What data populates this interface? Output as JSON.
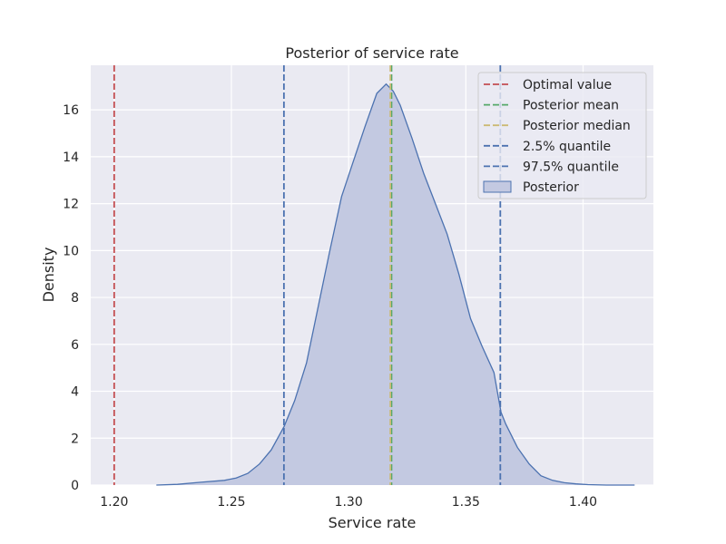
{
  "chart_data": {
    "type": "area",
    "title": "Posterior of service rate",
    "xlabel": "Service rate",
    "ylabel": "Density",
    "xlim": [
      1.19,
      1.43
    ],
    "ylim": [
      0,
      17.9
    ],
    "grid": true,
    "legend_position": "top-right",
    "x_ticks": [
      1.2,
      1.25,
      1.3,
      1.35,
      1.4
    ],
    "x_tick_labels": [
      "1.20",
      "1.25",
      "1.30",
      "1.35",
      "1.40"
    ],
    "y_ticks": [
      0,
      2,
      4,
      6,
      8,
      10,
      12,
      14,
      16
    ],
    "y_tick_labels": [
      "0",
      "2",
      "4",
      "6",
      "8",
      "10",
      "12",
      "14",
      "16"
    ],
    "background": "#eaeaf2",
    "grid_color": "#ffffff",
    "series": [
      {
        "name": "Posterior",
        "kind": "density",
        "fill": "#c3c9e1",
        "stroke": "#4c72b0",
        "x": [
          1.218,
          1.227,
          1.237,
          1.247,
          1.252,
          1.257,
          1.262,
          1.267,
          1.2725,
          1.277,
          1.282,
          1.287,
          1.292,
          1.297,
          1.302,
          1.307,
          1.312,
          1.316,
          1.319,
          1.322,
          1.327,
          1.332,
          1.337,
          1.342,
          1.347,
          1.352,
          1.357,
          1.362,
          1.365,
          1.367,
          1.372,
          1.377,
          1.382,
          1.387,
          1.392,
          1.397,
          1.402,
          1.41,
          1.422
        ],
        "y": [
          0.0,
          0.03,
          0.12,
          0.2,
          0.3,
          0.5,
          0.9,
          1.5,
          2.5,
          3.6,
          5.2,
          7.6,
          10.0,
          12.3,
          13.8,
          15.3,
          16.7,
          17.1,
          16.8,
          16.2,
          14.8,
          13.3,
          12.0,
          10.7,
          9.0,
          7.1,
          5.9,
          4.8,
          3.1,
          2.6,
          1.6,
          0.9,
          0.4,
          0.2,
          0.1,
          0.05,
          0.02,
          0.0,
          0.0
        ]
      }
    ],
    "vlines": [
      {
        "name": "Optimal value",
        "x": 1.2,
        "color": "#c44e52"
      },
      {
        "name": "Posterior mean",
        "x": 1.3183,
        "color": "#55a868"
      },
      {
        "name": "Posterior median",
        "x": 1.3178,
        "color": "#ccb974"
      },
      {
        "name": "2.5% quantile",
        "x": 1.2724,
        "color": "#4c72b0"
      },
      {
        "name": "97.5% quantile",
        "x": 1.3647,
        "color": "#4c72b0"
      }
    ],
    "legend": [
      {
        "label": "Optimal value",
        "style": "dashed",
        "color": "#c44e52"
      },
      {
        "label": "Posterior mean",
        "style": "dashed",
        "color": "#55a868"
      },
      {
        "label": "Posterior median",
        "style": "dashed",
        "color": "#ccb974"
      },
      {
        "label": "2.5% quantile",
        "style": "dashed",
        "color": "#4c72b0"
      },
      {
        "label": "97.5% quantile",
        "style": "dashed",
        "color": "#4c72b0"
      },
      {
        "label": "Posterior",
        "style": "patch",
        "color": "#c3c9e1",
        "edge": "#4c72b0"
      }
    ]
  }
}
